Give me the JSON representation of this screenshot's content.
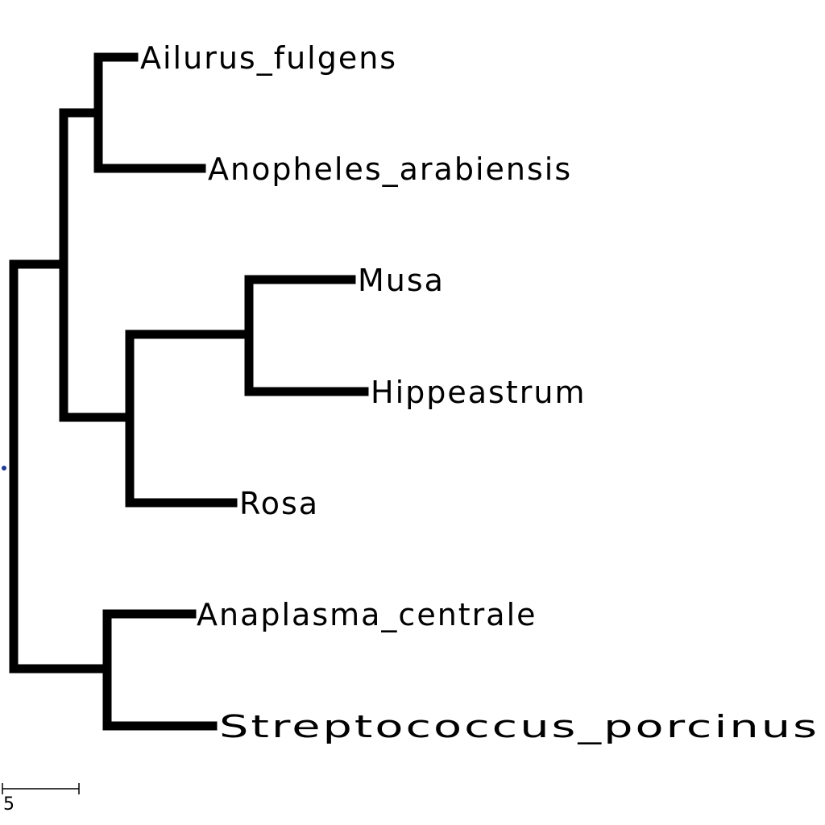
{
  "tree": {
    "leaves": [
      {
        "id": "ailurus",
        "label": "Ailurus_fulgens"
      },
      {
        "id": "anopheles",
        "label": "Anopheles_arabiensis"
      },
      {
        "id": "musa",
        "label": "Musa"
      },
      {
        "id": "hippeastrum",
        "label": "Hippeastrum"
      },
      {
        "id": "rosa",
        "label": "Rosa"
      },
      {
        "id": "anaplasma",
        "label": "Anaplasma_centrale"
      },
      {
        "id": "streptococcus",
        "label": "Streptococcus_porcinus"
      }
    ]
  },
  "scale_bar": {
    "label": "5"
  },
  "colors": {
    "branch": "#000000",
    "root_marker": "#1f3a93"
  }
}
